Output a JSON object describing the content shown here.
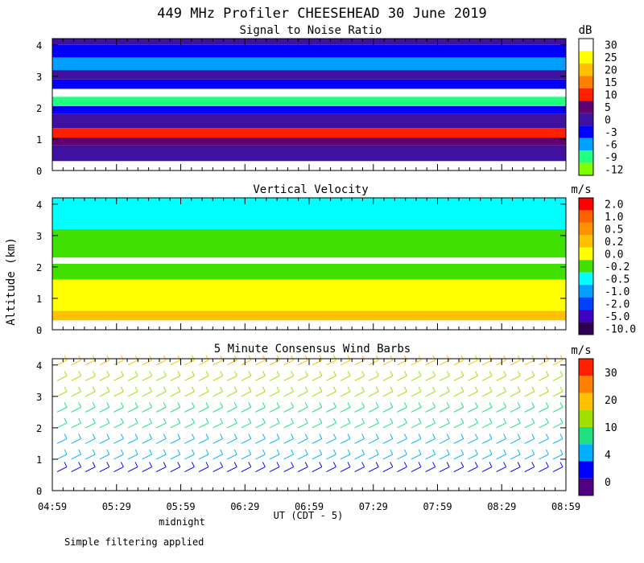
{
  "title": "449 MHz Profiler CHEESEHEAD 30 June 2019",
  "ylabel": "Altitude (km)",
  "xlabel": "UT (CDT - 5)",
  "midnight_label": "midnight",
  "footer": "Simple filtering applied",
  "x_ticks": [
    "04:59",
    "05:29",
    "05:59",
    "06:29",
    "06:59",
    "07:29",
    "07:59",
    "08:29",
    "08:59"
  ],
  "y_ticks": [
    "0",
    "1",
    "2",
    "3",
    "4"
  ],
  "chart_data": [
    {
      "type": "heatmap",
      "title": "Signal to Noise Ratio",
      "unit": "dB",
      "ylim": [
        0,
        4.2
      ],
      "levels": [
        "30",
        "25",
        "20",
        "15",
        "10",
        "5",
        "0",
        "-3",
        "-6",
        "-9",
        "-12"
      ],
      "colors": [
        "#ffffff",
        "#ffff00",
        "#ffc000",
        "#ff8000",
        "#ff2000",
        "#600070",
        "#4010a0",
        "#0000ff",
        "#00a0ff",
        "#20ff80",
        "#80ff00"
      ],
      "bands": [
        {
          "from": 0.3,
          "to": 0.8,
          "color": "#4010a0"
        },
        {
          "from": 0.8,
          "to": 1.05,
          "color": "#600070"
        },
        {
          "from": 1.05,
          "to": 1.35,
          "color": "#ff2000"
        },
        {
          "from": 1.35,
          "to": 1.8,
          "color": "#4010a0"
        },
        {
          "from": 1.8,
          "to": 2.05,
          "color": "#0000ff"
        },
        {
          "from": 2.05,
          "to": 2.35,
          "color": "#20ff80"
        },
        {
          "from": 2.35,
          "to": 2.6,
          "color": "#ffffff"
        },
        {
          "from": 2.6,
          "to": 2.9,
          "color": "#0000ff"
        },
        {
          "from": 2.9,
          "to": 3.2,
          "color": "#4010a0"
        },
        {
          "from": 3.2,
          "to": 3.6,
          "color": "#00a0ff"
        },
        {
          "from": 3.6,
          "to": 4.0,
          "color": "#0000ff"
        },
        {
          "from": 4.0,
          "to": 4.2,
          "color": "#4010a0"
        }
      ]
    },
    {
      "type": "heatmap",
      "title": "Vertical Velocity",
      "unit": "m/s",
      "ylim": [
        0,
        4.2
      ],
      "levels": [
        "2.0",
        "1.0",
        "0.5",
        "0.2",
        "0.0",
        "-0.2",
        "-0.5",
        "-1.0",
        "-2.0",
        "-5.0",
        "-10.0"
      ],
      "colors": [
        "#ff0000",
        "#ff6000",
        "#ff9000",
        "#ffc000",
        "#ffff00",
        "#40e000",
        "#00ffff",
        "#00a0ff",
        "#0040ff",
        "#4000c0",
        "#300050"
      ],
      "bands": [
        {
          "from": 0.3,
          "to": 0.6,
          "color": "#ffc000"
        },
        {
          "from": 0.6,
          "to": 1.6,
          "color": "#ffff00"
        },
        {
          "from": 1.6,
          "to": 2.1,
          "color": "#40e000"
        },
        {
          "from": 2.1,
          "to": 2.3,
          "color": "#ffffff"
        },
        {
          "from": 2.3,
          "to": 3.2,
          "color": "#40e000"
        },
        {
          "from": 3.2,
          "to": 4.2,
          "color": "#00ffff"
        }
      ]
    },
    {
      "type": "barbs",
      "title": "5 Minute Consensus Wind Barbs",
      "unit": "m/s",
      "ylim": [
        0,
        4.2
      ],
      "levels": [
        "30",
        "20",
        "10",
        "4",
        "0"
      ],
      "colors": [
        "#ff2000",
        "#ff8000",
        "#ffc000",
        "#a0e000",
        "#20e080",
        "#00b0ff",
        "#0000ff",
        "#500080"
      ],
      "speed_profile": [
        {
          "alt": 0.6,
          "speed": 3
        },
        {
          "alt": 1.0,
          "speed": 6
        },
        {
          "alt": 1.5,
          "speed": 9
        },
        {
          "alt": 2.0,
          "speed": 11
        },
        {
          "alt": 2.5,
          "speed": 12
        },
        {
          "alt": 3.0,
          "speed": 14
        },
        {
          "alt": 3.5,
          "speed": 19
        },
        {
          "alt": 4.0,
          "speed": 22
        }
      ]
    }
  ]
}
